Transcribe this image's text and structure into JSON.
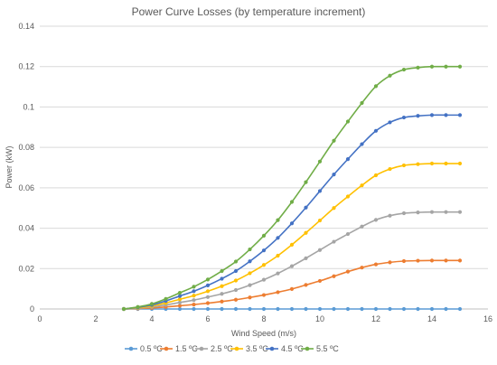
{
  "chart_data": {
    "type": "line",
    "title": "Power Curve Losses (by temperature increment)",
    "xlabel": "Wind Speed (m/s)",
    "ylabel": "Power (kW)",
    "xlim": [
      0,
      16
    ],
    "ylim": [
      0,
      0.14
    ],
    "x_ticks": [
      "0",
      "2",
      "4",
      "6",
      "8",
      "10",
      "12",
      "14",
      "16"
    ],
    "y_ticks": [
      "0",
      "0.02",
      "0.04",
      "0.06",
      "0.08",
      "0.1",
      "0.12",
      "0.14"
    ],
    "grid": "horizontal",
    "legend_position": "bottom",
    "x": [
      3,
      3.5,
      4,
      4.5,
      5,
      5.5,
      6,
      6.5,
      7,
      7.5,
      8,
      8.5,
      9,
      9.5,
      10,
      10.5,
      11,
      11.5,
      12,
      12.5,
      13,
      13.5,
      14,
      14.5,
      15
    ],
    "series": [
      {
        "name": "0.5 ºC",
        "color": "#5B9BD5",
        "values": [
          0,
          0,
          0,
          0,
          0,
          0,
          0,
          0,
          0,
          0,
          0,
          0,
          0,
          0,
          0,
          0,
          0,
          0,
          0,
          0,
          0,
          0,
          0,
          0,
          0
        ]
      },
      {
        "name": "1.5 ºC",
        "color": "#ED7D31",
        "values": [
          0,
          0.0002,
          0.0005,
          0.001,
          0.0016,
          0.0022,
          0.0029,
          0.0037,
          0.0046,
          0.0057,
          0.0069,
          0.0083,
          0.0099,
          0.0119,
          0.0139,
          0.0162,
          0.0185,
          0.0205,
          0.0221,
          0.0231,
          0.0237,
          0.0239,
          0.024,
          0.024,
          0.024
        ]
      },
      {
        "name": "2.5 ºC",
        "color": "#A5A5A5",
        "values": [
          0,
          0.0004,
          0.001,
          0.002,
          0.0032,
          0.0044,
          0.0059,
          0.0075,
          0.0094,
          0.0118,
          0.0145,
          0.0176,
          0.0212,
          0.0251,
          0.0292,
          0.0333,
          0.0371,
          0.0408,
          0.0441,
          0.0462,
          0.0474,
          0.0478,
          0.048,
          0.048,
          0.048
        ]
      },
      {
        "name": "3.5 ºC",
        "color": "#FFC000",
        "values": [
          0,
          0.0006,
          0.0015,
          0.003,
          0.0048,
          0.0066,
          0.0088,
          0.0113,
          0.0141,
          0.0177,
          0.0218,
          0.0264,
          0.0318,
          0.0377,
          0.0438,
          0.05,
          0.0557,
          0.0612,
          0.0662,
          0.0693,
          0.0711,
          0.0717,
          0.072,
          0.072,
          0.072
        ]
      },
      {
        "name": "4.5 ºC",
        "color": "#4472C4",
        "values": [
          0,
          0.0008,
          0.002,
          0.004,
          0.0064,
          0.0088,
          0.0117,
          0.015,
          0.0188,
          0.0236,
          0.029,
          0.0352,
          0.0424,
          0.0502,
          0.0584,
          0.0666,
          0.0742,
          0.0816,
          0.0882,
          0.0924,
          0.0948,
          0.0956,
          0.096,
          0.096,
          0.096
        ]
      },
      {
        "name": "5.5 ºC",
        "color": "#70AD47",
        "values": [
          0,
          0.001,
          0.0025,
          0.005,
          0.008,
          0.011,
          0.0146,
          0.0188,
          0.0235,
          0.0295,
          0.0363,
          0.044,
          0.053,
          0.0628,
          0.073,
          0.0833,
          0.0928,
          0.102,
          0.1103,
          0.1155,
          0.1185,
          0.1195,
          0.12,
          0.12,
          0.12
        ]
      }
    ]
  }
}
